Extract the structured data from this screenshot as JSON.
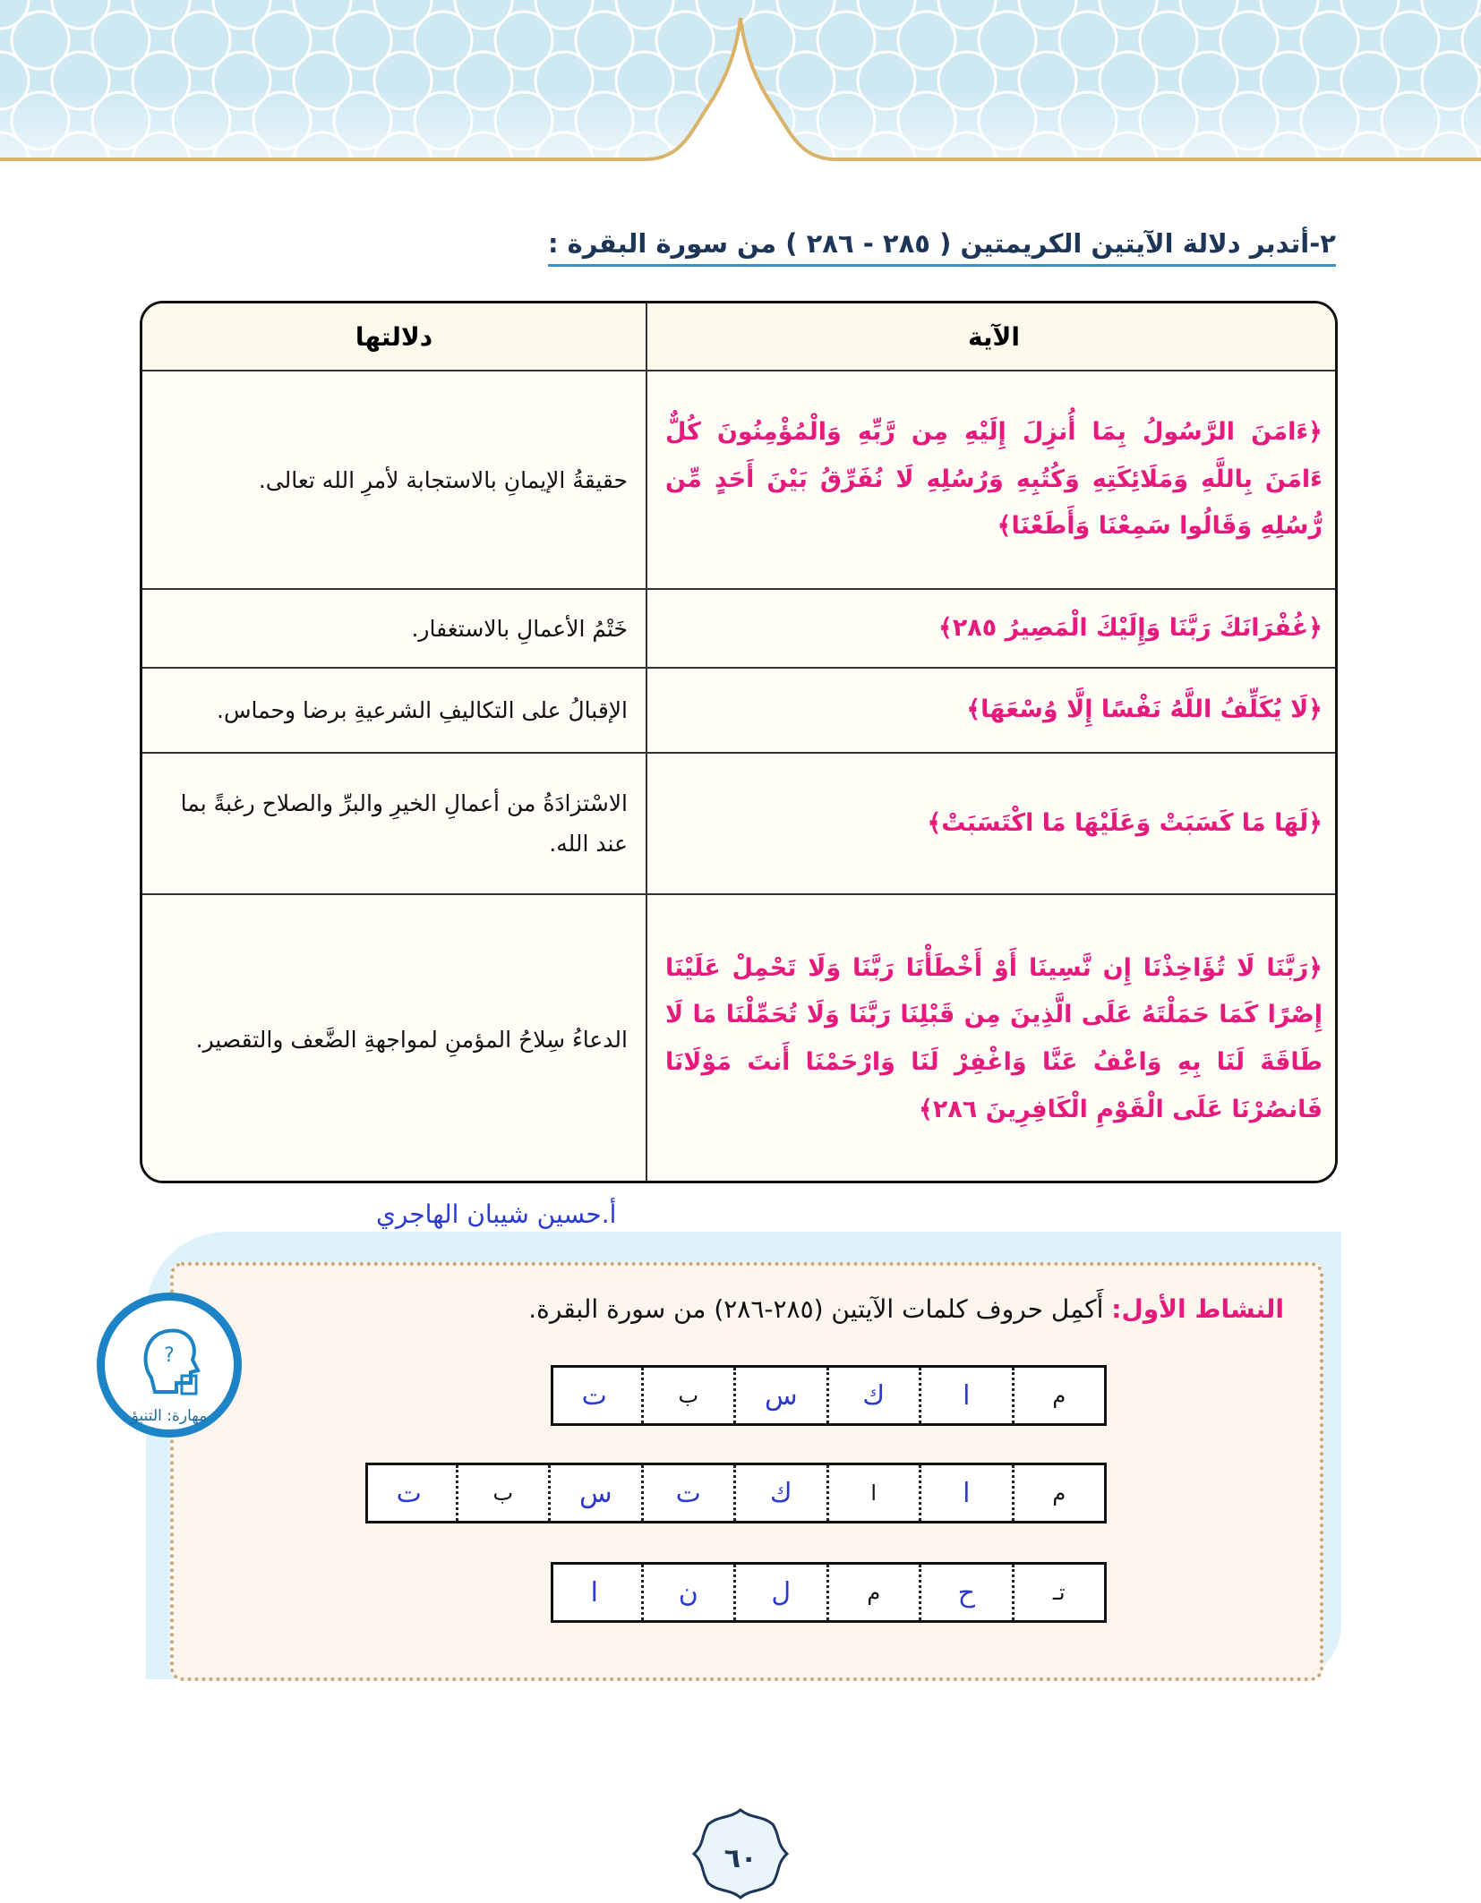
{
  "header": {
    "heading": "٢-أتدبر دلالة الآيتين الكريمتين ( ٢٨٥ - ٢٨٦ ) من سورة البقرة :"
  },
  "table": {
    "columns": [
      "الآية",
      "دلالتها"
    ],
    "rows": [
      [
        "﴿ءَامَنَ الرَّسُولُ بِمَا أُنزِلَ إِلَيْهِ مِن رَّبِّهِ وَالْمُؤْمِنُونَ كُلٌّ ءَامَنَ بِاللَّهِ وَمَلَائِكَتِهِ وَكُتُبِهِ وَرُسُلِهِ لَا نُفَرِّقُ بَيْنَ أَحَدٍ مِّن رُّسُلِهِ وَقَالُوا سَمِعْنَا وَأَطَعْنَا﴾",
        "حقيقةُ الإيمانِ بالاستجابة لأمرِ الله تعالى."
      ],
      [
        "﴿غُفْرَانَكَ رَبَّنَا وَإِلَيْكَ الْمَصِيرُ ٢٨٥﴾",
        "خَتْمُ الأعمالِ بالاستغفار."
      ],
      [
        "﴿لَا يُكَلِّفُ اللَّهُ نَفْسًا إِلَّا وُسْعَهَا﴾",
        "الإقبالُ على التكاليفِ الشرعيةِ برضا وحماس."
      ],
      [
        "﴿لَهَا مَا كَسَبَتْ وَعَلَيْهَا مَا اكْتَسَبَتْ﴾",
        "الاسْتزادَةُ من أعمالِ الخيرِ والبرِّ والصلاح رغبةً بما عند الله."
      ],
      [
        "﴿رَبَّنَا لَا تُؤَاخِذْنَا إِن نَّسِينَا أَوْ أَخْطَأْنَا رَبَّنَا وَلَا تَحْمِلْ عَلَيْنَا إِصْرًا كَمَا حَمَلْتَهُ عَلَى الَّذِينَ مِن قَبْلِنَا رَبَّنَا وَلَا تُحَمِّلْنَا مَا لَا طَاقَةَ لَنَا بِهِ وَاعْفُ عَنَّا وَاغْفِرْ لَنَا وَارْحَمْنَا أَنتَ مَوْلَانَا فَانصُرْنَا عَلَى الْقَوْمِ الْكَافِرِينَ ٢٨٦﴾",
        "الدعاءُ سِلاحُ المؤمنِ لمواجهةِ الضَّعف والتقصير."
      ]
    ]
  },
  "author": "أ.حسين شيبان الهاجري",
  "activity": {
    "skill": "مهارة: التنبؤ",
    "label": "النشاط الأول:",
    "instruction": "أَكمِل حروف كلمات الآيتين (٢٨٥-٢٨٦) من سورة البقرة.",
    "grids": [
      [
        {
          "letter": "م",
          "handwritten": false
        },
        {
          "letter": "ا",
          "handwritten": true
        },
        {
          "letter": "ك",
          "handwritten": true
        },
        {
          "letter": "س",
          "handwritten": true
        },
        {
          "letter": "ب",
          "handwritten": false
        },
        {
          "letter": "ت",
          "handwritten": true
        }
      ],
      [
        {
          "letter": "م",
          "handwritten": false
        },
        {
          "letter": "ا",
          "handwritten": true
        },
        {
          "letter": "ا",
          "handwritten": false
        },
        {
          "letter": "ك",
          "handwritten": true
        },
        {
          "letter": "ت",
          "handwritten": true
        },
        {
          "letter": "س",
          "handwritten": true
        },
        {
          "letter": "ب",
          "handwritten": false
        },
        {
          "letter": "ت",
          "handwritten": true
        }
      ],
      [
        {
          "letter": "تـ",
          "handwritten": false
        },
        {
          "letter": "ح",
          "handwritten": true
        },
        {
          "letter": "م",
          "handwritten": false
        },
        {
          "letter": "ل",
          "handwritten": true
        },
        {
          "letter": "ن",
          "handwritten": true
        },
        {
          "letter": "ا",
          "handwritten": true
        }
      ]
    ]
  },
  "page_number": "٦٠"
}
